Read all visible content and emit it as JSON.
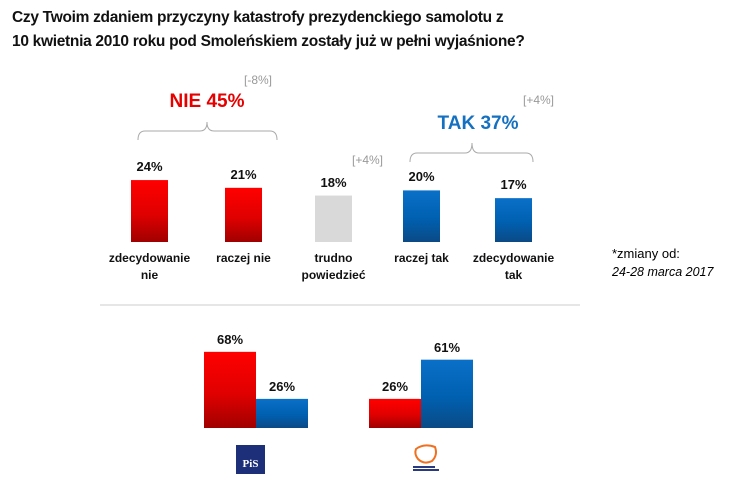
{
  "title_lines": [
    "Czy Twoim zdaniem przyczyny katastrofy prezydenckiego samolotu z",
    "10 kwietnia 2010 roku pod Smoleńskiem zostały już w pełni wyjaśnione?"
  ],
  "colors": {
    "nie": "#e60000",
    "tak": "#0066bb",
    "neutral": "#d9d9d9",
    "nie_text": "#e60000",
    "tak_text": "#1470c0"
  },
  "chart_data": [
    {
      "type": "bar",
      "categories": [
        "zdecydowanie\nnie",
        "raczej nie",
        "trudno\npowiedzieć",
        "raczej tak",
        "zdecydowanie\ntak"
      ],
      "values": [
        24,
        21,
        18,
        20,
        17
      ],
      "labels": [
        "24%",
        "21%",
        "18%",
        "20%",
        "17%"
      ],
      "bar_colors": [
        "nie",
        "nie",
        "neutral",
        "tak",
        "tak"
      ],
      "groups": [
        {
          "label": "NIE 45%",
          "change": "[-8%]",
          "color": "nie_text"
        },
        {
          "label": "TAK 37%",
          "change": "[+4%]",
          "color": "tak_text"
        }
      ],
      "neutral_change": "[+4%]",
      "footnote": [
        "*zmiany od:",
        "24-28  marca 2017"
      ]
    },
    {
      "type": "bar",
      "categories": [
        "PiS",
        "Platforma Obywatelska"
      ],
      "series": [
        {
          "color": "nie",
          "values": [
            68,
            26
          ],
          "labels": [
            "68%",
            "26%"
          ]
        },
        {
          "color": "tak",
          "values": [
            26,
            61
          ],
          "labels": [
            "26%",
            "61%"
          ]
        }
      ],
      "logos": [
        "PiS",
        "Platforma Obywatelska"
      ]
    }
  ]
}
